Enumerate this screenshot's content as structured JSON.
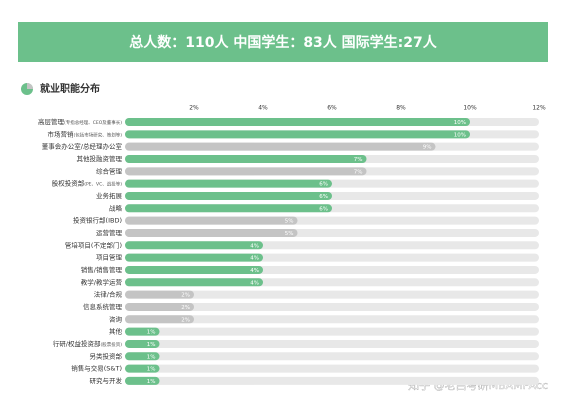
{
  "header": "总人数：110人  中国学生：83人  国际学生:27人",
  "watermark": "知乎 @老吕考研MBAMPAcc",
  "chart_data": {
    "type": "bar",
    "orientation": "horizontal",
    "title": "就业职能分布",
    "categories": [
      "高层管理",
      "市场营销",
      "董事会办公室/总经理办公室",
      "其他投融资管理",
      "综合管理",
      "股权投资部",
      "业务拓展",
      "战略",
      "投资银行部(IBD)",
      "运营管理",
      "管培项目(不定部门)",
      "项目管理",
      "销售/销售管理",
      "教学/教学运营",
      "法律/合规",
      "信息系统管理",
      "咨询",
      "其他",
      "行研/权益投资部",
      "另类投资部",
      "销售与交易(S&T)",
      "研究与开发"
    ],
    "category_notes": [
      "(专指总经理、CEO及董事长)",
      "(包括市场研究、策划等)",
      null,
      null,
      null,
      "(PE、VC、战投等)",
      null,
      null,
      null,
      null,
      null,
      null,
      null,
      null,
      null,
      null,
      null,
      null,
      "(股票投资)",
      null,
      null,
      null
    ],
    "values": [
      10,
      10,
      9,
      7,
      7,
      6,
      6,
      6,
      5,
      5,
      4,
      4,
      4,
      4,
      2,
      2,
      2,
      1,
      1,
      1,
      1,
      1
    ],
    "value_labels": [
      "10%",
      "10%",
      "9%",
      "7%",
      "7%",
      "6%",
      "6%",
      "6%",
      "5%",
      "5%",
      "4%",
      "4%",
      "4%",
      "4%",
      "2%",
      "2%",
      "2%",
      "1%",
      "1%",
      "1%",
      "1%",
      "1%"
    ],
    "colors": [
      "#6cc08b",
      "#6cc08b",
      "#c4c4c4",
      "#6cc08b",
      "#c4c4c4",
      "#6cc08b",
      "#6cc08b",
      "#6cc08b",
      "#c4c4c4",
      "#c4c4c4",
      "#6cc08b",
      "#6cc08b",
      "#6cc08b",
      "#6cc08b",
      "#c4c4c4",
      "#c4c4c4",
      "#c4c4c4",
      "#6cc08b",
      "#6cc08b",
      "#6cc08b",
      "#6cc08b",
      "#6cc08b"
    ],
    "track_color": "#e8e8e8",
    "xlim": [
      0,
      12
    ],
    "xticks": [
      {
        "value": 2,
        "label": "2%"
      },
      {
        "value": 4,
        "label": "4%"
      },
      {
        "value": 6,
        "label": "6%"
      },
      {
        "value": 8,
        "label": "8%"
      },
      {
        "value": 10,
        "label": "10%"
      },
      {
        "value": 12,
        "label": "12%"
      }
    ]
  }
}
